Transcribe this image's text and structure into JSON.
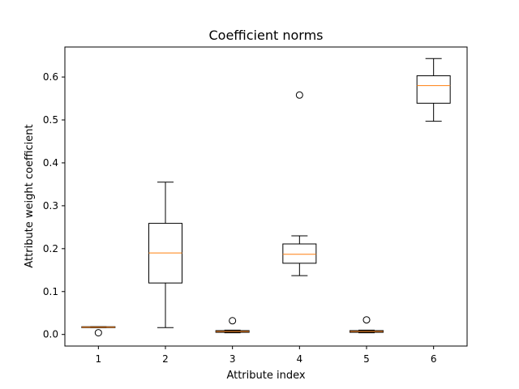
{
  "chart_data": {
    "type": "box",
    "title": "Coefficient norms",
    "xlabel": "Attribute index",
    "ylabel": "Attribute weight coefficient",
    "ylim": [
      -0.027,
      0.67
    ],
    "yticks": [
      "0.0",
      "0.1",
      "0.2",
      "0.3",
      "0.4",
      "0.5",
      "0.6"
    ],
    "categories": [
      "1",
      "2",
      "3",
      "4",
      "5",
      "6"
    ],
    "median_color": "#ff7f0e",
    "box_color": "#000000",
    "grid": false,
    "boxes": [
      {
        "label": "1",
        "whisker_low": 0.016,
        "q1": 0.016,
        "median": 0.017,
        "q3": 0.018,
        "whisker_high": 0.018,
        "fliers": [
          0.004
        ]
      },
      {
        "label": "2",
        "whisker_low": 0.016,
        "q1": 0.12,
        "median": 0.19,
        "q3": 0.259,
        "whisker_high": 0.355,
        "fliers": []
      },
      {
        "label": "3",
        "whisker_low": 0.004,
        "q1": 0.005,
        "median": 0.007,
        "q3": 0.009,
        "whisker_high": 0.01,
        "fliers": [
          0.032
        ]
      },
      {
        "label": "4",
        "whisker_low": 0.137,
        "q1": 0.166,
        "median": 0.187,
        "q3": 0.211,
        "whisker_high": 0.23,
        "fliers": [
          0.558
        ]
      },
      {
        "label": "5",
        "whisker_low": 0.004,
        "q1": 0.005,
        "median": 0.007,
        "q3": 0.009,
        "whisker_high": 0.01,
        "fliers": [
          0.034
        ]
      },
      {
        "label": "6",
        "whisker_low": 0.497,
        "q1": 0.539,
        "median": 0.58,
        "q3": 0.603,
        "whisker_high": 0.643,
        "fliers": []
      }
    ]
  }
}
